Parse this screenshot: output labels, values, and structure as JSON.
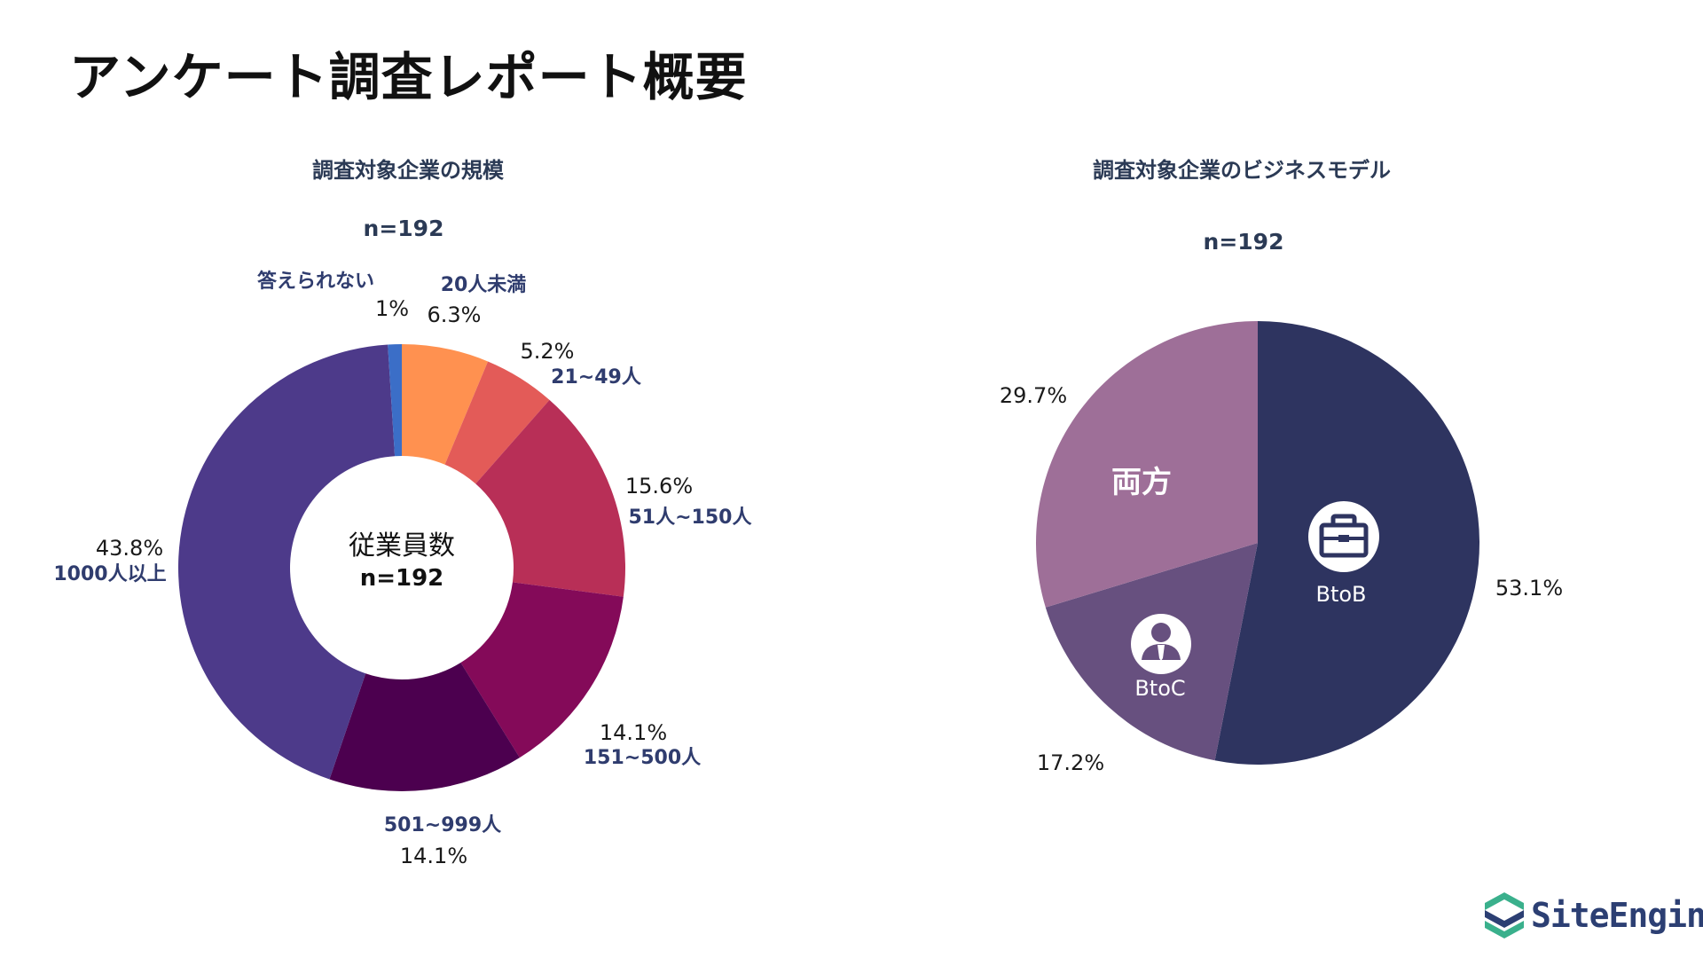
{
  "page": {
    "title": "アンケート調査レポート概要"
  },
  "colors": {
    "accent_text": "#2b3a55",
    "category_text": "#2f3c6e",
    "logo_green": "#3ab08c",
    "logo_navy": "#2c3f73"
  },
  "chart_data": [
    {
      "type": "pie",
      "variant": "donut",
      "title": "調査対象企業の規模",
      "sample_size": "n=192",
      "center_label": "従業員数",
      "center_n": "n=192",
      "slices": [
        {
          "label": "20人未満",
          "value": 6.3,
          "value_text": "6.3%",
          "color": "#ff9150"
        },
        {
          "label": "21~49人",
          "value": 5.2,
          "value_text": "5.2%",
          "color": "#e35b58"
        },
        {
          "label": "51人~150人",
          "value": 15.6,
          "value_text": "15.6%",
          "color": "#b82f57"
        },
        {
          "label": "151~500人",
          "value": 14.1,
          "value_text": "14.1%",
          "color": "#840a59"
        },
        {
          "label": "501~999人",
          "value": 14.1,
          "value_text": "14.1%",
          "color": "#4c004f"
        },
        {
          "label": "1000人以上",
          "value": 43.8,
          "value_text": "43.8%",
          "color": "#4d3a8a"
        },
        {
          "label": "答えられない",
          "value": 1.0,
          "value_text": "1%",
          "color": "#3b6ec7"
        }
      ]
    },
    {
      "type": "pie",
      "title": "調査対象企業のビジネスモデル",
      "sample_size": "n=192",
      "slices": [
        {
          "label": "BtoB",
          "value": 53.1,
          "value_text": "53.1%",
          "color": "#2e3460",
          "icon": "briefcase-icon"
        },
        {
          "label": "BtoC",
          "value": 17.2,
          "value_text": "17.2%",
          "color": "#67507f",
          "icon": "person-icon"
        },
        {
          "label": "両方",
          "value": 29.7,
          "value_text": "29.7%",
          "color": "#9e6f98"
        }
      ]
    }
  ],
  "logo": {
    "text": "SiteEngine"
  }
}
